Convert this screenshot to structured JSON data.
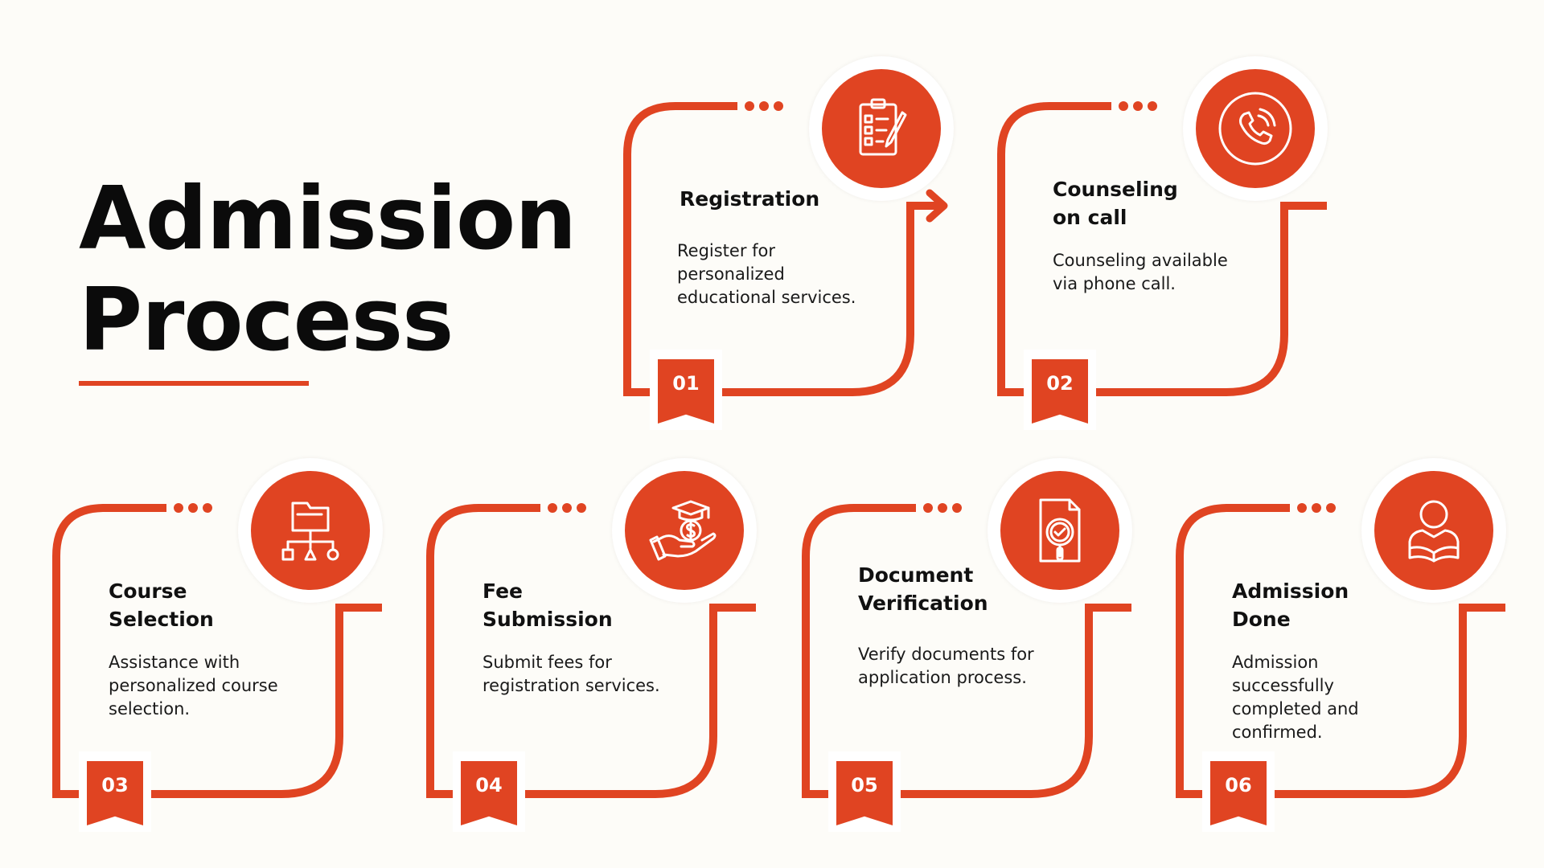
{
  "title": {
    "line1": "Admission",
    "line2": "Process"
  },
  "accent_color": "#e04422",
  "steps": [
    {
      "number": "01",
      "title": "Registration",
      "description": "Register for personalized educational services.",
      "icon": "clipboard-checklist-icon"
    },
    {
      "number": "02",
      "title": "Counseling\n on call",
      "description": "Counseling available via phone call.",
      "icon": "phone-call-icon"
    },
    {
      "number": "03",
      "title": "Course\nSelection",
      "description": "Assistance with personalized course selection.",
      "icon": "folder-hierarchy-icon"
    },
    {
      "number": "04",
      "title": "Fee\nSubmission",
      "description": "Submit fees for registration services.",
      "icon": "graduation-fee-hand-icon"
    },
    {
      "number": "05",
      "title": "Document\nVerification",
      "description": "Verify documents for application process.",
      "icon": "document-search-check-icon"
    },
    {
      "number": "06",
      "title": "Admission\nDone",
      "description": "Admission successfully completed and confirmed.",
      "icon": "student-reading-icon"
    }
  ]
}
